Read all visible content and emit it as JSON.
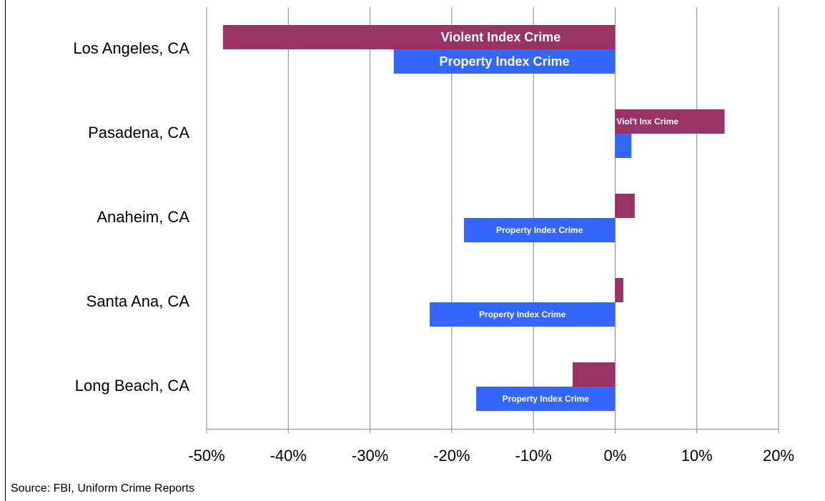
{
  "chart_data": {
    "type": "barh",
    "categories": [
      "Los Angeles, CA",
      "Pasadena, CA",
      "Anaheim, CA",
      "Santa Ana, CA",
      "Long Beach, CA"
    ],
    "series": [
      {
        "color": "#993366",
        "values": [
          -48,
          13.4,
          2.4,
          1,
          -5.2
        ],
        "labels": [
          "Violent Index Crime",
          "Viol't Inx Crime",
          null,
          null,
          null
        ]
      },
      {
        "color": "#3366ff",
        "values": [
          -27.1,
          2,
          -18.5,
          -22.7,
          -17
        ],
        "labels": [
          "Property Index Crime",
          null,
          "Property Index Crime",
          "Property Index Crime",
          "Property Index Crime"
        ]
      }
    ],
    "xlim": [
      -50,
      20
    ],
    "xticks": [
      {
        "value": -50,
        "label": "-50%"
      },
      {
        "value": -40,
        "label": "-40%"
      },
      {
        "value": -30,
        "label": "-30%"
      },
      {
        "value": -20,
        "label": "-20%"
      },
      {
        "value": -10,
        "label": "-10%"
      },
      {
        "value": 0,
        "label": "0%"
      },
      {
        "value": 10,
        "label": "10%"
      },
      {
        "value": 20,
        "label": "20%"
      }
    ],
    "grid": true,
    "source": "Source: FBI, Uniform Crime Reports"
  }
}
